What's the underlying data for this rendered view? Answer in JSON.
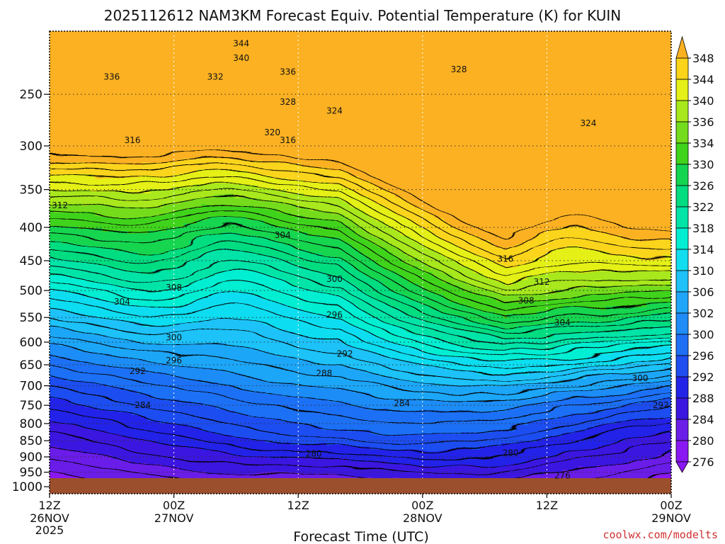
{
  "chart_data": {
    "type": "heatmap",
    "title": "2025112612 NAM3KM Forecast Equiv. Potential Temperature (K) for KUIN",
    "xlabel": "Forecast Time (UTC)",
    "ylabel": "",
    "credit": "coolwx.com/modelts",
    "x_ticks": [
      {
        "label": "12Z",
        "date": "26NOV",
        "year": "2025",
        "hours": 0
      },
      {
        "label": "00Z",
        "date": "27NOV",
        "hours": 12
      },
      {
        "label": "12Z",
        "date": "",
        "hours": 24
      },
      {
        "label": "00Z",
        "date": "28NOV",
        "hours": 36
      },
      {
        "label": "12Z",
        "date": "",
        "hours": 48
      },
      {
        "label": "00Z",
        "date": "29NOV",
        "hours": 60
      }
    ],
    "xlim": [
      0,
      60
    ],
    "ylim_hpa": [
      1025,
      200
    ],
    "y_ticks": [
      "250",
      "300",
      "350",
      "400",
      "450",
      "500",
      "550",
      "600",
      "650",
      "700",
      "750",
      "800",
      "850",
      "900",
      "950",
      "1000"
    ],
    "y_tick_values": [
      250,
      300,
      350,
      400,
      450,
      500,
      550,
      600,
      650,
      700,
      750,
      800,
      850,
      900,
      950,
      1000
    ],
    "colorbar_labels": [
      "348",
      "344",
      "340",
      "336",
      "334",
      "330",
      "326",
      "322",
      "318",
      "314",
      "310",
      "306",
      "302",
      "300",
      "296",
      "292",
      "288",
      "284",
      "280",
      "276"
    ],
    "colorbar_values": [
      348,
      344,
      340,
      336,
      334,
      330,
      326,
      322,
      318,
      314,
      310,
      306,
      302,
      300,
      296,
      292,
      288,
      284,
      280,
      276
    ],
    "colors": {
      "276": "#8a18f2",
      "280": "#6a1ee8",
      "284": "#3a16e0",
      "288": "#2323e8",
      "292": "#1e4ef0",
      "296": "#1f6ff5",
      "300": "#1f8cf7",
      "302": "#1fa6f8",
      "306": "#1ec2f8",
      "310": "#11ddf0",
      "314": "#00eed2",
      "318": "#00e4a8",
      "322": "#00dc80",
      "326": "#14d550",
      "330": "#3fd31c",
      "334": "#74dc1c",
      "336": "#a8e81c",
      "340": "#e4f018",
      "344": "#fbd41a",
      "348": "#fbb120"
    },
    "ground_color": "#9b4f2c",
    "contour_labels": [
      {
        "text": "344",
        "h": 18.5,
        "p": 209
      },
      {
        "text": "340",
        "h": 18.5,
        "p": 220
      },
      {
        "text": "336",
        "h": 6.0,
        "p": 235
      },
      {
        "text": "332",
        "h": 16.0,
        "p": 235
      },
      {
        "text": "336",
        "h": 23.0,
        "p": 231
      },
      {
        "text": "328",
        "h": 23.0,
        "p": 257
      },
      {
        "text": "324",
        "h": 27.5,
        "p": 265
      },
      {
        "text": "328",
        "h": 39.5,
        "p": 229
      },
      {
        "text": "324",
        "h": 52.0,
        "p": 277
      },
      {
        "text": "320",
        "h": 21.5,
        "p": 286
      },
      {
        "text": "316",
        "h": 8.0,
        "p": 294
      },
      {
        "text": "316",
        "h": 23.0,
        "p": 294
      },
      {
        "text": "312",
        "h": 1.0,
        "p": 370
      },
      {
        "text": "304",
        "h": 22.5,
        "p": 411
      },
      {
        "text": "316",
        "h": 44.0,
        "p": 447
      },
      {
        "text": "300",
        "h": 27.5,
        "p": 480
      },
      {
        "text": "312",
        "h": 47.5,
        "p": 485
      },
      {
        "text": "308",
        "h": 12.0,
        "p": 495
      },
      {
        "text": "308",
        "h": 46.0,
        "p": 518
      },
      {
        "text": "304",
        "h": 7.0,
        "p": 520
      },
      {
        "text": "296",
        "h": 27.5,
        "p": 545
      },
      {
        "text": "304",
        "h": 49.5,
        "p": 560
      },
      {
        "text": "300",
        "h": 12.0,
        "p": 590
      },
      {
        "text": "292",
        "h": 28.5,
        "p": 625
      },
      {
        "text": "296",
        "h": 12.0,
        "p": 640
      },
      {
        "text": "292",
        "h": 8.5,
        "p": 665
      },
      {
        "text": "288",
        "h": 26.5,
        "p": 670
      },
      {
        "text": "300",
        "h": 57.0,
        "p": 682
      },
      {
        "text": "284",
        "h": 9.0,
        "p": 750
      },
      {
        "text": "284",
        "h": 34.0,
        "p": 745
      },
      {
        "text": "292",
        "h": 59.0,
        "p": 750
      },
      {
        "text": "280",
        "h": 25.5,
        "p": 890
      },
      {
        "text": "280",
        "h": 44.5,
        "p": 888
      },
      {
        "text": "276",
        "h": 49.5,
        "p": 962
      }
    ]
  }
}
